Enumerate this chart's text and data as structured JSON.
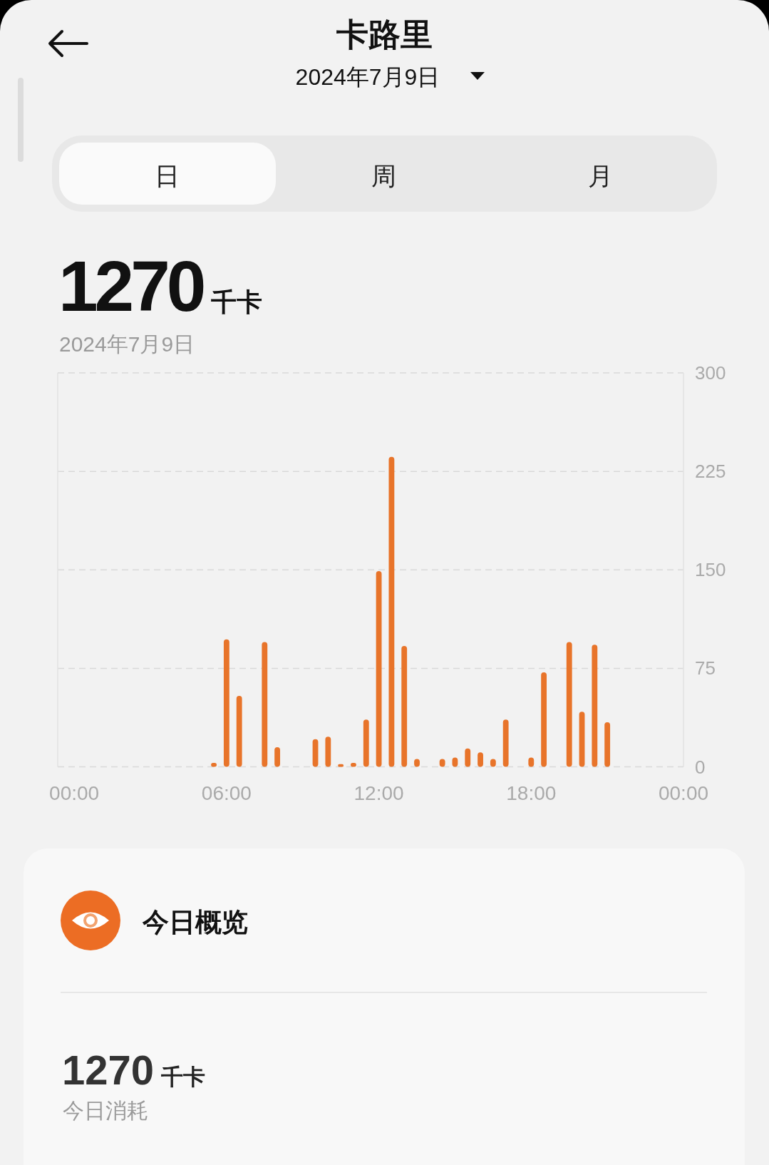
{
  "chart_data": {
    "type": "bar",
    "title": "卡路里",
    "subtitle": "2024年7月9日",
    "x": [
      5.5,
      6,
      6.5,
      7.5,
      8,
      9.5,
      10,
      10.5,
      11,
      11.5,
      12,
      12.5,
      13,
      13.5,
      14.5,
      15,
      15.5,
      16,
      16.5,
      17,
      18,
      18.5,
      19.5,
      20,
      20.5,
      21
    ],
    "values": [
      3,
      97,
      54,
      95,
      15,
      21,
      23,
      2,
      3,
      36,
      149,
      236,
      92,
      6,
      6,
      7,
      14,
      11,
      6,
      36,
      7,
      72,
      95,
      42,
      93,
      34
    ],
    "color": "#e8742a",
    "xlim": [
      -0.65,
      24
    ],
    "xticks": [
      {
        "value": 0,
        "label": "00:00"
      },
      {
        "value": 6,
        "label": "06:00"
      },
      {
        "value": 12,
        "label": "12:00"
      },
      {
        "value": 18,
        "label": "18:00"
      },
      {
        "value": 24,
        "label": "00:00"
      }
    ],
    "ylim": [
      0,
      300
    ],
    "yticks": [
      0,
      75,
      150,
      225,
      300
    ],
    "grid": "y",
    "annotations": [
      "日",
      "周",
      "月",
      "1270",
      "千卡",
      "2024年7月9日",
      "今日概览",
      "1270",
      "千卡",
      "今日消耗"
    ]
  }
}
